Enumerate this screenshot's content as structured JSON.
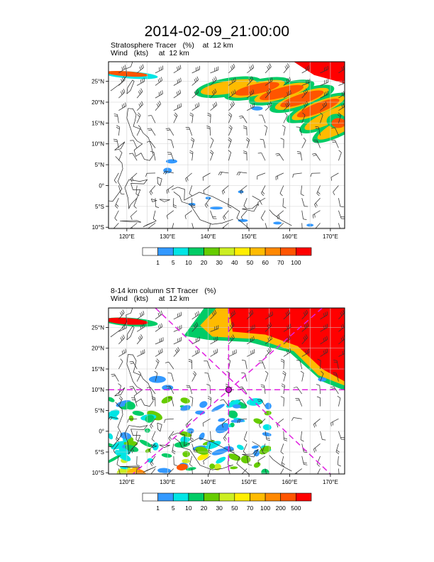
{
  "title": "2014-02-09_21:00:00",
  "panels": [
    {
      "line1_label": "Stratosphere Tracer",
      "line1_unit": "(%)",
      "line2_label": "Wind",
      "line2_unit": "(kts)",
      "level_prefix": "at",
      "level": "12 km",
      "lat_labels": [
        "25°N",
        "20°N",
        "15°N",
        "10°N",
        "5°N",
        "0°",
        "5°S",
        "10°S"
      ],
      "lon_labels": [
        "120°E",
        "130°E",
        "140°E",
        "150°E",
        "160°E",
        "170°E"
      ],
      "colorbar_labels": [
        "1",
        "5",
        "10",
        "20",
        "30",
        "40",
        "50",
        "60",
        "70",
        "100"
      ],
      "colorbar_colors": [
        "#ffffff",
        "#3399ff",
        "#00e5e5",
        "#00cc66",
        "#66cc00",
        "#ccee22",
        "#ffee00",
        "#ffbb00",
        "#ff8800",
        "#ff5500",
        "#ff0000"
      ]
    },
    {
      "line1_label": "8-14 km column ST Tracer",
      "line1_unit": "(%)",
      "line2_label": "Wind",
      "line2_unit": "(kts)",
      "level_prefix": "at",
      "level": "12 km",
      "lat_labels": [
        "25°N",
        "20°N",
        "15°N",
        "10°N",
        "5°N",
        "0°",
        "5°S",
        "10°S"
      ],
      "lon_labels": [
        "120°E",
        "130°E",
        "140°E",
        "150°E",
        "160°E",
        "170°E"
      ],
      "colorbar_labels": [
        "1",
        "5",
        "10",
        "20",
        "30",
        "50",
        "70",
        "100",
        "200",
        "500"
      ],
      "colorbar_colors": [
        "#ffffff",
        "#3399ff",
        "#00e5e5",
        "#00cc66",
        "#66cc00",
        "#ccee22",
        "#ffee00",
        "#ffbb00",
        "#ff8800",
        "#ff5500",
        "#ff0000"
      ],
      "marker_lat": 10,
      "marker_lon": 145
    }
  ]
}
